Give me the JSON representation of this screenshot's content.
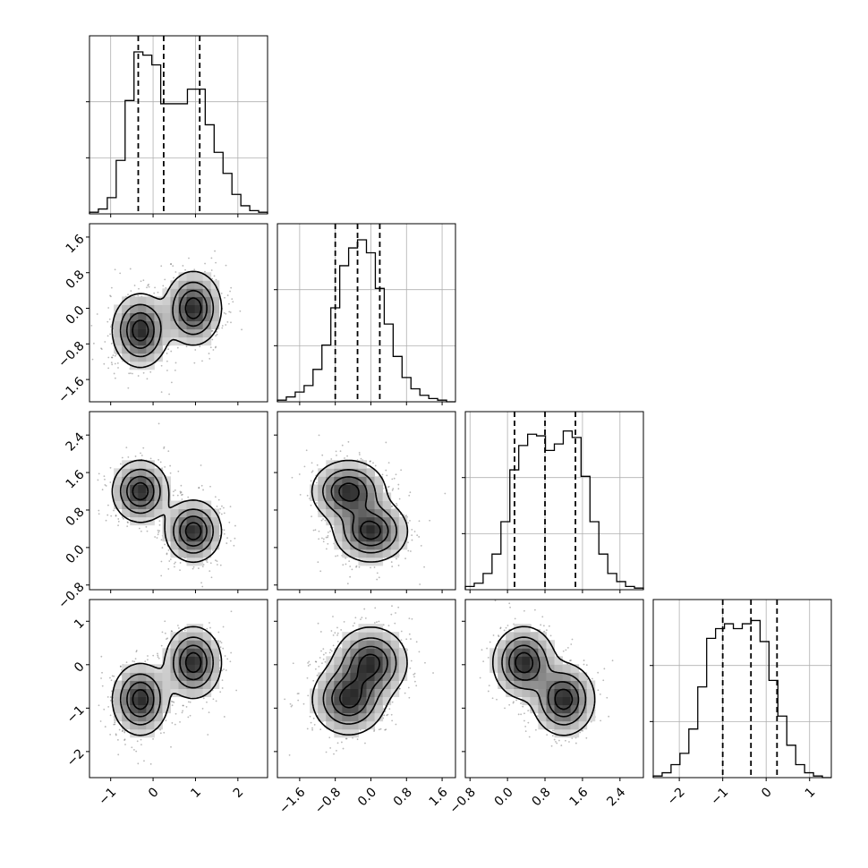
{
  "chart_data": {
    "type": "corner",
    "params": [
      {
        "ticks": [
          "−1",
          "0",
          "1",
          "2"
        ],
        "tick_values": [
          -1,
          0,
          1,
          2
        ],
        "range": [
          -1.5,
          2.7
        ],
        "quantiles": [
          -0.35,
          0.25,
          1.1
        ],
        "hist_edges_start": -1.5,
        "hist_bin_width": 0.21,
        "hist_counts": [
          0.01,
          0.03,
          0.1,
          0.33,
          0.7,
          1.0,
          0.98,
          0.92,
          0.68,
          0.68,
          0.68,
          0.77,
          0.77,
          0.55,
          0.38,
          0.25,
          0.12,
          0.05,
          0.02,
          0.01
        ]
      },
      {
        "ticks": [
          "−1.6",
          "−0.8",
          "0.0",
          "0.8",
          "1.6"
        ],
        "tick_values": [
          -1.6,
          -0.8,
          0,
          0.8,
          1.6
        ],
        "range": [
          -2.1,
          1.9
        ],
        "quantiles": [
          -0.8,
          -0.3,
          0.2
        ],
        "hist_edges_start": -2.1,
        "hist_bin_width": 0.2,
        "hist_counts": [
          0.01,
          0.03,
          0.06,
          0.1,
          0.2,
          0.35,
          0.58,
          0.84,
          0.95,
          1.0,
          0.92,
          0.7,
          0.48,
          0.28,
          0.15,
          0.08,
          0.04,
          0.02,
          0.01,
          0.0
        ]
      },
      {
        "ticks": [
          "−0.8",
          "0.0",
          "0.8",
          "1.6",
          "2.4"
        ],
        "tick_values": [
          -0.8,
          0,
          0.8,
          1.6,
          2.4
        ],
        "range": [
          -0.9,
          2.9
        ],
        "quantiles": [
          0.15,
          0.8,
          1.45
        ],
        "hist_edges_start": -0.9,
        "hist_bin_width": 0.19,
        "hist_counts": [
          0.02,
          0.04,
          0.1,
          0.22,
          0.42,
          0.74,
          0.89,
          0.96,
          0.95,
          0.86,
          0.9,
          0.98,
          0.94,
          0.7,
          0.42,
          0.22,
          0.1,
          0.05,
          0.02,
          0.01
        ]
      },
      {
        "ticks": [
          "−2",
          "−1",
          "0",
          "1"
        ],
        "tick_values": [
          -2,
          -1,
          0,
          1
        ],
        "range": [
          -2.6,
          1.5
        ],
        "quantiles": [
          -1.0,
          -0.35,
          0.25
        ],
        "hist_edges_start": -2.6,
        "hist_bin_width": 0.205,
        "hist_counts": [
          0.01,
          0.03,
          0.08,
          0.15,
          0.3,
          0.56,
          0.86,
          0.92,
          0.95,
          0.92,
          0.95,
          0.97,
          0.84,
          0.6,
          0.38,
          0.2,
          0.08,
          0.03,
          0.01,
          0.0
        ]
      }
    ],
    "mixture": {
      "components": [
        {
          "weight": 0.5,
          "mean": [
            -0.3,
            -0.5,
            1.2,
            -0.8
          ],
          "sd": [
            0.32,
            0.4,
            0.32,
            0.4
          ]
        },
        {
          "weight": 0.5,
          "mean": [
            0.95,
            0.0,
            0.35,
            0.05
          ],
          "sd": [
            0.32,
            0.4,
            0.32,
            0.4
          ]
        }
      ]
    },
    "contour_levels": [
      0.12,
      0.35,
      0.62,
      0.86
    ],
    "show_grid": true
  }
}
